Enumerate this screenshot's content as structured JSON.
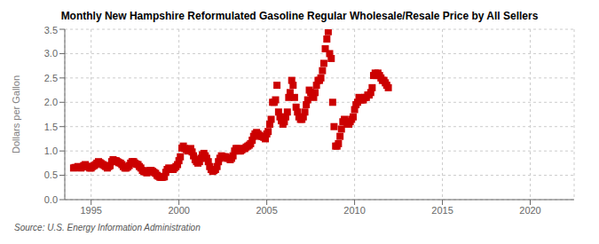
{
  "chart_data": {
    "type": "scatter",
    "title": "Monthly New Hampshire Reformulated Gasoline Regular Wholesale/Resale Price by All Sellers",
    "ylabel": "Dollars per Gallon",
    "annotations": [
      "Source: U.S. Energy Information Administration"
    ],
    "color": "#cc0000",
    "marker": "square",
    "grid": true,
    "xlim": [
      1993.5,
      2022.5
    ],
    "ylim": [
      0.0,
      3.5
    ],
    "xticks": [
      1995,
      2000,
      2005,
      2010,
      2015,
      2020
    ],
    "yticks": [
      {
        "value": 0.0,
        "label": "0.0"
      },
      0.5,
      {
        "value": 1.0,
        "label": "1.0"
      },
      1.5,
      {
        "value": 2.0,
        "label": "2.0"
      },
      2.5,
      {
        "value": 3.0,
        "label": "3.0"
      },
      3.5
    ],
    "x": [
      1994.0,
      1994.08,
      1994.17,
      1994.25,
      1994.33,
      1994.42,
      1994.5,
      1994.58,
      1994.67,
      1994.75,
      1994.83,
      1994.92,
      1995.0,
      1995.08,
      1995.17,
      1995.25,
      1995.33,
      1995.42,
      1995.5,
      1995.58,
      1995.67,
      1995.75,
      1995.83,
      1995.92,
      1996.0,
      1996.08,
      1996.17,
      1996.25,
      1996.33,
      1996.42,
      1996.5,
      1996.58,
      1996.67,
      1996.75,
      1996.83,
      1996.92,
      1997.0,
      1997.08,
      1997.17,
      1997.25,
      1997.33,
      1997.42,
      1997.5,
      1997.58,
      1997.67,
      1997.75,
      1997.83,
      1997.92,
      1998.0,
      1998.08,
      1998.17,
      1998.25,
      1998.33,
      1998.42,
      1998.5,
      1998.58,
      1998.67,
      1998.75,
      1998.83,
      1998.92,
      1999.0,
      1999.08,
      1999.17,
      1999.25,
      1999.33,
      1999.42,
      1999.5,
      1999.58,
      1999.67,
      1999.75,
      1999.83,
      1999.92,
      2000.0,
      2000.08,
      2000.17,
      2000.25,
      2000.33,
      2000.42,
      2000.5,
      2000.58,
      2000.67,
      2000.75,
      2000.83,
      2000.92,
      2001.0,
      2001.08,
      2001.17,
      2001.25,
      2001.33,
      2001.42,
      2001.5,
      2001.58,
      2001.67,
      2001.75,
      2001.83,
      2001.92,
      2002.0,
      2002.08,
      2002.17,
      2002.25,
      2002.33,
      2002.42,
      2002.5,
      2002.58,
      2002.67,
      2002.75,
      2002.83,
      2002.92,
      2003.0,
      2003.08,
      2003.17,
      2003.25,
      2003.33,
      2003.42,
      2003.5,
      2003.58,
      2003.67,
      2003.75,
      2003.83,
      2003.92,
      2004.0,
      2004.08,
      2004.17,
      2004.25,
      2004.33,
      2004.42,
      2004.5,
      2004.58,
      2004.67,
      2004.75,
      2004.83,
      2004.92,
      2005.0,
      2005.08,
      2005.17,
      2005.25,
      2005.33,
      2005.42,
      2005.5,
      2005.58,
      2005.67,
      2005.75,
      2005.83,
      2005.92,
      2006.0,
      2006.08,
      2006.17,
      2006.25,
      2006.33,
      2006.42,
      2006.5,
      2006.58,
      2006.67,
      2006.75,
      2006.83,
      2006.92,
      2007.0,
      2007.08,
      2007.17,
      2007.25,
      2007.33,
      2007.42,
      2007.5,
      2007.58,
      2007.67,
      2007.75,
      2007.83,
      2007.92,
      2008.0,
      2008.08,
      2008.17,
      2008.25,
      2008.33,
      2008.42,
      2008.5,
      2008.58,
      2008.67,
      2008.75,
      2008.83,
      2008.92,
      2009.0,
      2009.08,
      2009.17,
      2009.25,
      2009.33,
      2009.42,
      2009.5,
      2009.58,
      2009.67,
      2009.75,
      2009.83,
      2009.92,
      2010.0,
      2010.08,
      2010.17,
      2010.25,
      2010.33,
      2010.42,
      2010.5,
      2010.58,
      2010.67,
      2010.75,
      2010.83,
      2010.92,
      2011.0,
      2011.08,
      2011.17,
      2011.25,
      2011.33,
      2011.42,
      2011.5,
      2011.58,
      2011.67,
      2011.75,
      2011.83,
      2011.92
    ],
    "values": [
      0.65,
      0.66,
      0.66,
      0.68,
      0.66,
      0.65,
      0.67,
      0.7,
      0.72,
      0.68,
      0.68,
      0.65,
      0.65,
      0.68,
      0.7,
      0.72,
      0.75,
      0.78,
      0.76,
      0.74,
      0.72,
      0.7,
      0.68,
      0.65,
      0.68,
      0.7,
      0.78,
      0.82,
      0.8,
      0.8,
      0.78,
      0.76,
      0.75,
      0.72,
      0.68,
      0.65,
      0.65,
      0.67,
      0.7,
      0.75,
      0.78,
      0.78,
      0.75,
      0.73,
      0.72,
      0.68,
      0.65,
      0.6,
      0.58,
      0.57,
      0.55,
      0.58,
      0.6,
      0.6,
      0.58,
      0.56,
      0.54,
      0.5,
      0.48,
      0.46,
      0.46,
      0.46,
      0.47,
      0.56,
      0.62,
      0.65,
      0.64,
      0.62,
      0.62,
      0.65,
      0.68,
      0.72,
      0.8,
      0.88,
      1.06,
      1.1,
      1.05,
      1.03,
      1.0,
      1.02,
      1.05,
      0.98,
      0.9,
      0.82,
      0.78,
      0.75,
      0.78,
      0.85,
      0.92,
      0.95,
      0.9,
      0.85,
      0.78,
      0.68,
      0.62,
      0.58,
      0.6,
      0.62,
      0.68,
      0.78,
      0.85,
      0.9,
      0.88,
      0.88,
      0.88,
      0.85,
      0.85,
      0.82,
      0.85,
      0.9,
      1.0,
      1.05,
      1.05,
      1.0,
      1.0,
      1.02,
      1.05,
      1.05,
      1.08,
      1.1,
      1.12,
      1.15,
      1.22,
      1.3,
      1.35,
      1.38,
      1.35,
      1.32,
      1.3,
      1.3,
      1.28,
      1.25,
      1.35,
      1.4,
      1.55,
      1.65,
      2.0,
      2.0,
      2.05,
      2.35,
      1.8,
      1.7,
      1.62,
      1.55,
      1.6,
      1.7,
      1.8,
      2.1,
      2.2,
      2.45,
      2.35,
      2.1,
      1.9,
      1.8,
      1.7,
      1.65,
      1.65,
      1.7,
      1.8,
      1.95,
      2.05,
      2.25,
      2.2,
      2.15,
      2.1,
      2.2,
      2.35,
      2.45,
      2.45,
      2.5,
      2.65,
      2.8,
      3.1,
      3.3,
      3.45,
      3.0,
      2.9,
      2.0,
      1.5,
      1.1,
      1.1,
      1.15,
      1.3,
      1.45,
      1.6,
      1.65,
      1.6,
      1.55,
      1.55,
      1.6,
      1.65,
      1.7,
      1.85,
      1.95,
      2.0,
      2.1,
      2.05,
      2.05,
      2.05,
      2.1,
      2.1,
      2.15,
      2.15,
      2.2,
      2.3,
      2.55,
      2.6,
      2.55,
      2.6,
      2.55,
      2.5,
      2.45,
      2.45,
      2.4,
      2.35,
      2.3
    ]
  }
}
